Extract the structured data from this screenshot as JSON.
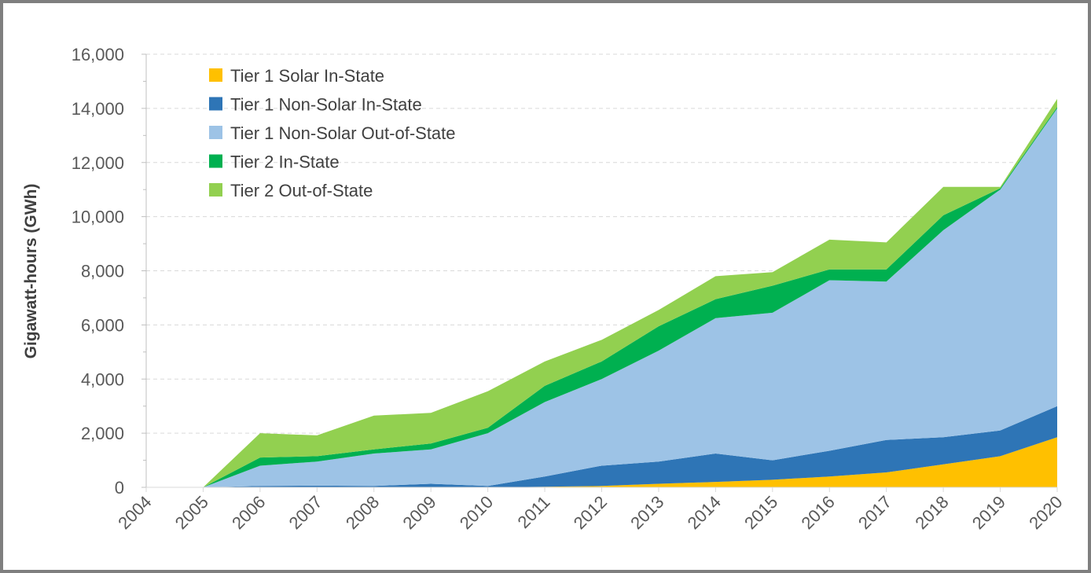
{
  "chart_data": {
    "type": "area",
    "stacked": true,
    "title": "",
    "xlabel": "",
    "ylabel": "Gigawatt-hours (GWh)",
    "ylim": [
      0,
      16000
    ],
    "yticks": [
      "0",
      "2,000",
      "4,000",
      "6,000",
      "8,000",
      "10,000",
      "12,000",
      "14,000",
      "16,000"
    ],
    "grid": "horizontal dashed",
    "legend_position": "top-left",
    "x": [
      "2004",
      "2005",
      "2006",
      "2007",
      "2008",
      "2009",
      "2010",
      "2011",
      "2012",
      "2013",
      "2014",
      "2015",
      "2016",
      "2017",
      "2018",
      "2019",
      "2020"
    ],
    "series": [
      {
        "name": "Tier 1 Solar In-State",
        "color": "#FFC000",
        "values": [
          0,
          0,
          0,
          0,
          0,
          0,
          0,
          20,
          50,
          130,
          200,
          280,
          400,
          550,
          850,
          1150,
          1850
        ]
      },
      {
        "name": "Tier 1 Non-Solar In-State",
        "color": "#2E75B6",
        "values": [
          0,
          0,
          50,
          60,
          50,
          130,
          50,
          380,
          750,
          820,
          1050,
          720,
          950,
          1200,
          1000,
          950,
          1150
        ]
      },
      {
        "name": "Tier 1 Non-Solar Out-of-State",
        "color": "#9DC3E6",
        "values": [
          0,
          0,
          750,
          890,
          1200,
          1270,
          1950,
          2750,
          3200,
          4100,
          5000,
          5450,
          6300,
          5850,
          7650,
          8900,
          11000
        ]
      },
      {
        "name": "Tier 2 In-State",
        "color": "#00B050",
        "values": [
          0,
          0,
          300,
          200,
          150,
          220,
          200,
          600,
          650,
          900,
          700,
          1000,
          400,
          450,
          550,
          50,
          50
        ]
      },
      {
        "name": "Tier 2 Out-of-State",
        "color": "#92D050",
        "values": [
          0,
          0,
          900,
          770,
          1250,
          1130,
          1350,
          900,
          800,
          600,
          850,
          500,
          1100,
          1000,
          1050,
          50,
          300
        ]
      }
    ]
  }
}
